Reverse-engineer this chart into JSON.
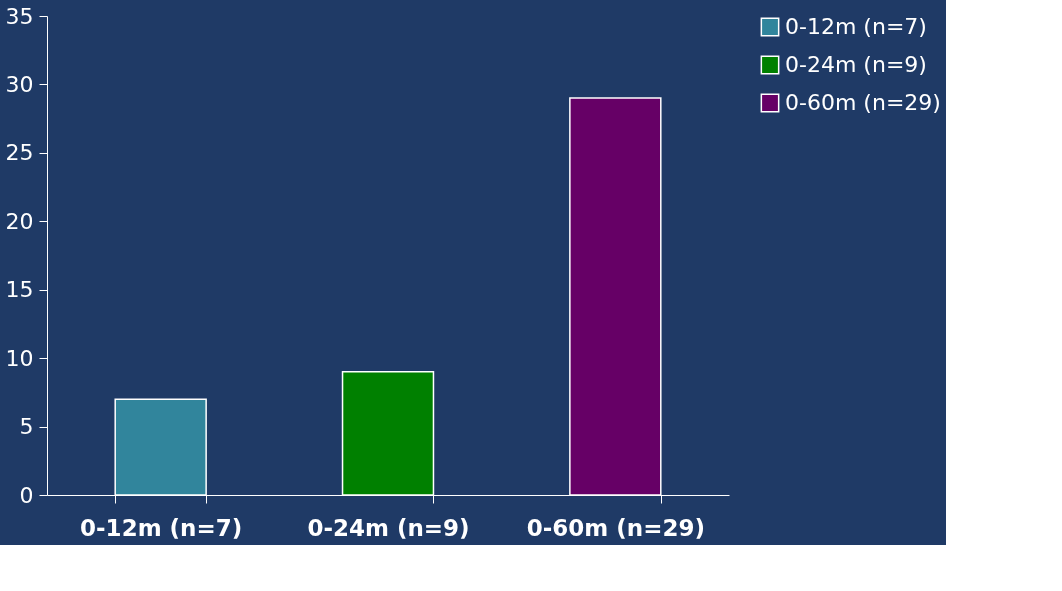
{
  "chart_data": {
    "type": "bar",
    "categories": [
      "0-12m (n=7)",
      "0-24m (n=9)",
      "0-60m (n=29)"
    ],
    "series": [
      {
        "name": "0-12m (n=7)",
        "color": "#31859c",
        "values": [
          7,
          null,
          null
        ]
      },
      {
        "name": "0-24m (n=9)",
        "color": "#008000",
        "values": [
          null,
          9,
          null
        ]
      },
      {
        "name": "0-60m (n=29)",
        "color": "#660066",
        "values": [
          null,
          null,
          29
        ]
      }
    ],
    "ylim": [
      0,
      35
    ],
    "yticks": [
      0,
      5,
      10,
      15,
      20,
      25,
      30,
      35
    ],
    "grid": false,
    "legend": "right"
  }
}
